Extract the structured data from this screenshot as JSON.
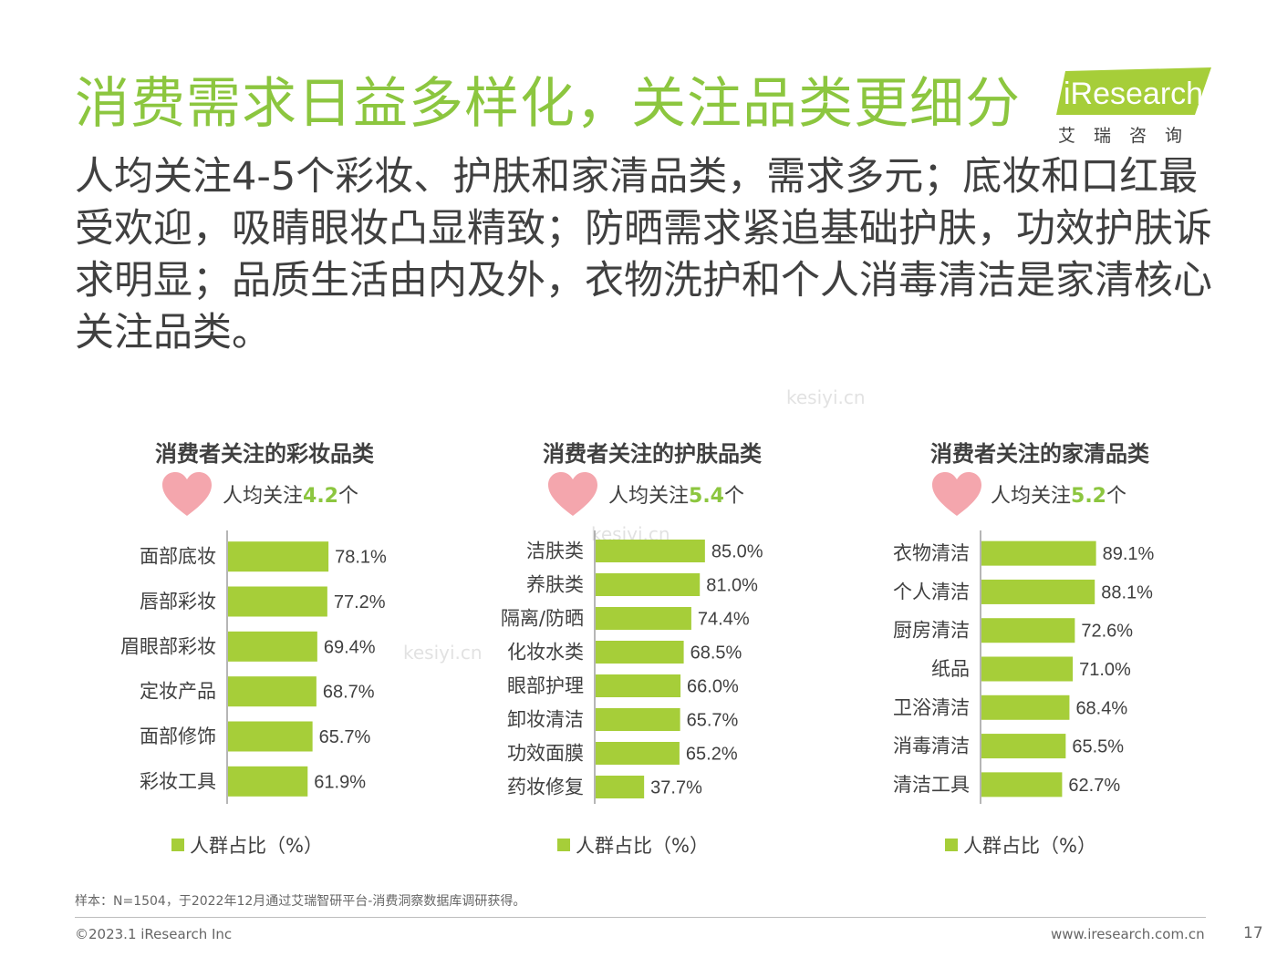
{
  "header": {
    "title": "消费需求日益多样化，关注品类更细分",
    "subtitle": "人均关注4-5个彩妆、护肤和家清品类，需求多元；底妆和口红最受欢迎，吸睛眼妆凸显精致；防晒需求紧追基础护肤，功效护肤诉求明显；品质生活由内及外，衣物洗护和个人消毒清洁是家清核心关注品类。"
  },
  "logo": {
    "brand": "iResearch",
    "sub": "艾瑞咨询"
  },
  "watermark": "kesiyi.cn",
  "panels": [
    {
      "title": "消费者关注的彩妆品类",
      "avg_prefix": "人均关注",
      "avg_value": "4.2",
      "avg_suffix": "个"
    },
    {
      "title": "消费者关注的护肤品类",
      "avg_prefix": "人均关注",
      "avg_value": "5.4",
      "avg_suffix": "个"
    },
    {
      "title": "消费者关注的家清品类",
      "avg_prefix": "人均关注",
      "avg_value": "5.2",
      "avg_suffix": "个"
    }
  ],
  "legend_label": "人群占比（%）",
  "colors": {
    "accent": "#8cc63f",
    "bar": "#a6ce39",
    "heart": "#f4a6ad",
    "text": "#404040"
  },
  "chart_data": [
    {
      "type": "bar",
      "orientation": "horizontal",
      "title": "消费者关注的彩妆品类",
      "categories": [
        "面部底妆",
        "唇部彩妆",
        "眉眼部彩妆",
        "定妆产品",
        "面部修饰",
        "彩妆工具"
      ],
      "series": [
        {
          "name": "人群占比（%）",
          "values": [
            78.1,
            77.2,
            69.4,
            68.7,
            65.7,
            61.9
          ]
        }
      ],
      "value_labels": [
        "78.1%",
        "77.2%",
        "69.4%",
        "68.7%",
        "65.7%",
        "61.9%"
      ],
      "xlim": [
        0,
        200
      ],
      "grid": false,
      "legend_position": "bottom"
    },
    {
      "type": "bar",
      "orientation": "horizontal",
      "title": "消费者关注的护肤品类",
      "categories": [
        "洁肤类",
        "养肤类",
        "隔离/防晒",
        "化妆水类",
        "眼部护理",
        "卸妆清洁",
        "功效面膜",
        "药妆修复"
      ],
      "series": [
        {
          "name": "人群占比（%）",
          "values": [
            85.0,
            81.0,
            74.4,
            68.5,
            66.0,
            65.7,
            65.2,
            37.7
          ]
        }
      ],
      "value_labels": [
        "85.0%",
        "81.0%",
        "74.4%",
        "68.5%",
        "66.0%",
        "65.7%",
        "65.2%",
        "37.7%"
      ],
      "xlim": [
        0,
        200
      ],
      "grid": false,
      "legend_position": "bottom"
    },
    {
      "type": "bar",
      "orientation": "horizontal",
      "title": "消费者关注的家清品类",
      "categories": [
        "衣物清洁",
        "个人清洁",
        "厨房清洁",
        "纸品",
        "卫浴清洁",
        "消毒清洁",
        "清洁工具"
      ],
      "series": [
        {
          "name": "人群占比（%）",
          "values": [
            89.1,
            88.1,
            72.6,
            71.0,
            68.4,
            65.5,
            62.7
          ]
        }
      ],
      "value_labels": [
        "89.1%",
        "88.1%",
        "72.6%",
        "71.0%",
        "68.4%",
        "65.5%",
        "62.7%"
      ],
      "xlim": [
        0,
        200
      ],
      "grid": false,
      "legend_position": "bottom"
    }
  ],
  "footer": {
    "note": "样本：N=1504，于2022年12月通过艾瑞智研平台-消费洞察数据库调研获得。",
    "copyright": "©2023.1 iResearch Inc",
    "website": "www.iresearch.com.cn",
    "page": "17"
  }
}
